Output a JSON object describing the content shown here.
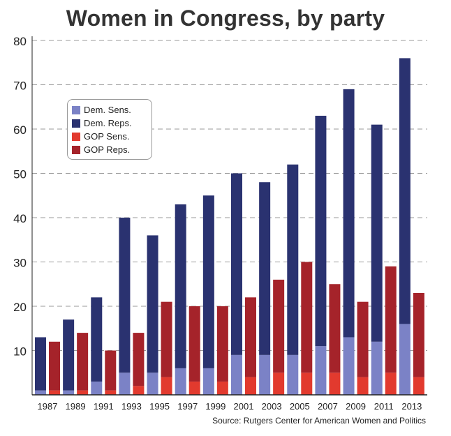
{
  "chart_data": {
    "type": "bar",
    "title": "Women in Congress, by party",
    "source": "Source: Rutgers Center for American Women and Politics",
    "categories": [
      "1987",
      "1989",
      "1991",
      "1993",
      "1995",
      "1997",
      "1999",
      "2001",
      "2003",
      "2005",
      "2007",
      "2009",
      "2011",
      "2013"
    ],
    "ylim": [
      0,
      80
    ],
    "yticks": [
      10,
      20,
      30,
      40,
      50,
      60,
      70,
      80
    ],
    "grid": true,
    "legend_position": "upper-left",
    "series": [
      {
        "name": "Dem. Sens.",
        "color": "#7b82c6",
        "values": [
          1,
          1,
          3,
          5,
          5,
          6,
          6,
          9,
          9,
          9,
          11,
          13,
          12,
          16
        ]
      },
      {
        "name": "Dem. Reps.",
        "color": "#2a3270",
        "values": [
          12,
          16,
          19,
          35,
          31,
          37,
          39,
          41,
          39,
          43,
          52,
          56,
          49,
          60
        ]
      },
      {
        "name": "GOP Sens.",
        "color": "#e23a2e",
        "values": [
          1,
          1,
          1,
          2,
          4,
          3,
          3,
          4,
          5,
          5,
          5,
          4,
          5,
          4
        ]
      },
      {
        "name": "GOP Reps.",
        "color": "#a5232a",
        "values": [
          11,
          13,
          9,
          12,
          17,
          17,
          17,
          18,
          21,
          25,
          20,
          17,
          24,
          19
        ]
      }
    ]
  }
}
